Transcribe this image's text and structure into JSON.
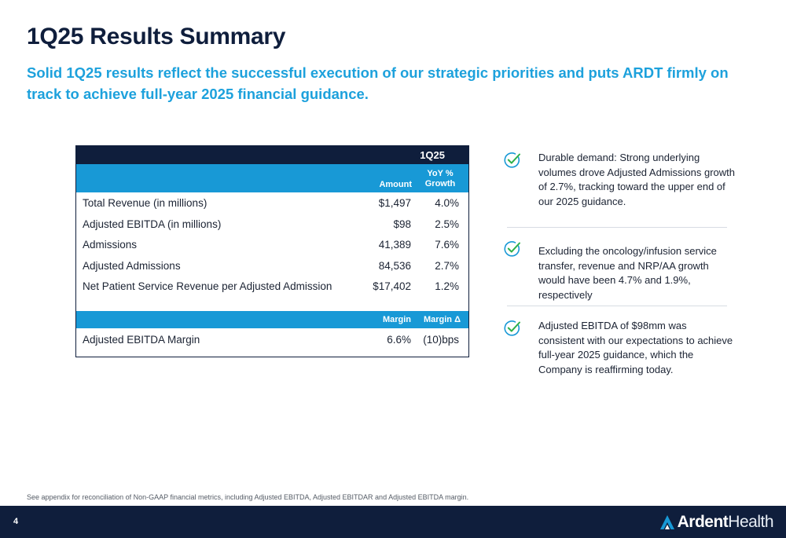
{
  "header": {
    "title": "1Q25 Results Summary",
    "subtitle": "Solid 1Q25 results reflect the successful execution of our strategic priorities and puts ARDT firmly on track to achieve full-year 2025 financial guidance."
  },
  "table": {
    "period": "1Q25",
    "col_amount": "Amount",
    "col_growth_line1": "YoY %",
    "col_growth_line2": "Growth",
    "rows": [
      {
        "label": "Total Revenue (in millions)",
        "amount": "$1,497",
        "growth": "4.0%"
      },
      {
        "label": "Adjusted EBITDA (in millions)",
        "amount": "$98",
        "growth": "2.5%"
      },
      {
        "label": "Admissions",
        "amount": "41,389",
        "growth": "7.6%"
      },
      {
        "label": "Adjusted Admissions",
        "amount": "84,536",
        "growth": "2.7%"
      },
      {
        "label": "Net Patient Service Revenue per Adjusted Admission",
        "amount": "$17,402",
        "growth": "1.2%"
      }
    ],
    "margin_col1": "Margin",
    "margin_col2": "Margin Δ",
    "margin_row": {
      "label": "Adjusted EBITDA Margin",
      "margin": "6.6%",
      "delta": "(10)bps"
    }
  },
  "bullets": [
    {
      "icon": "check-icon",
      "text": "Durable demand: Strong underlying volumes drove Adjusted Admissions growth of 2.7%, tracking toward the upper end of our 2025 guidance."
    },
    {
      "icon": "check-icon",
      "text": "Excluding the oncology/infusion service transfer, revenue and NRP/AA growth would have been 4.7% and 1.9%, respectively"
    },
    {
      "icon": "check-icon",
      "text": "Adjusted EBITDA of $98mm was consistent with our expectations to achieve full-year 2025 guidance, which the Company is reaffirming today."
    }
  ],
  "footnote": "See appendix for reconciliation of Non-GAAP financial metrics, including Adjusted EBITDA, Adjusted EBITDAR and Adjusted EBITDA margin.",
  "footer": {
    "page_number": "4",
    "logo_ardent": "Ardent",
    "logo_health": "Health"
  },
  "colors": {
    "navy": "#0f1e3c",
    "accent_blue": "#1899d6",
    "subtitle_blue": "#1da1dc"
  }
}
